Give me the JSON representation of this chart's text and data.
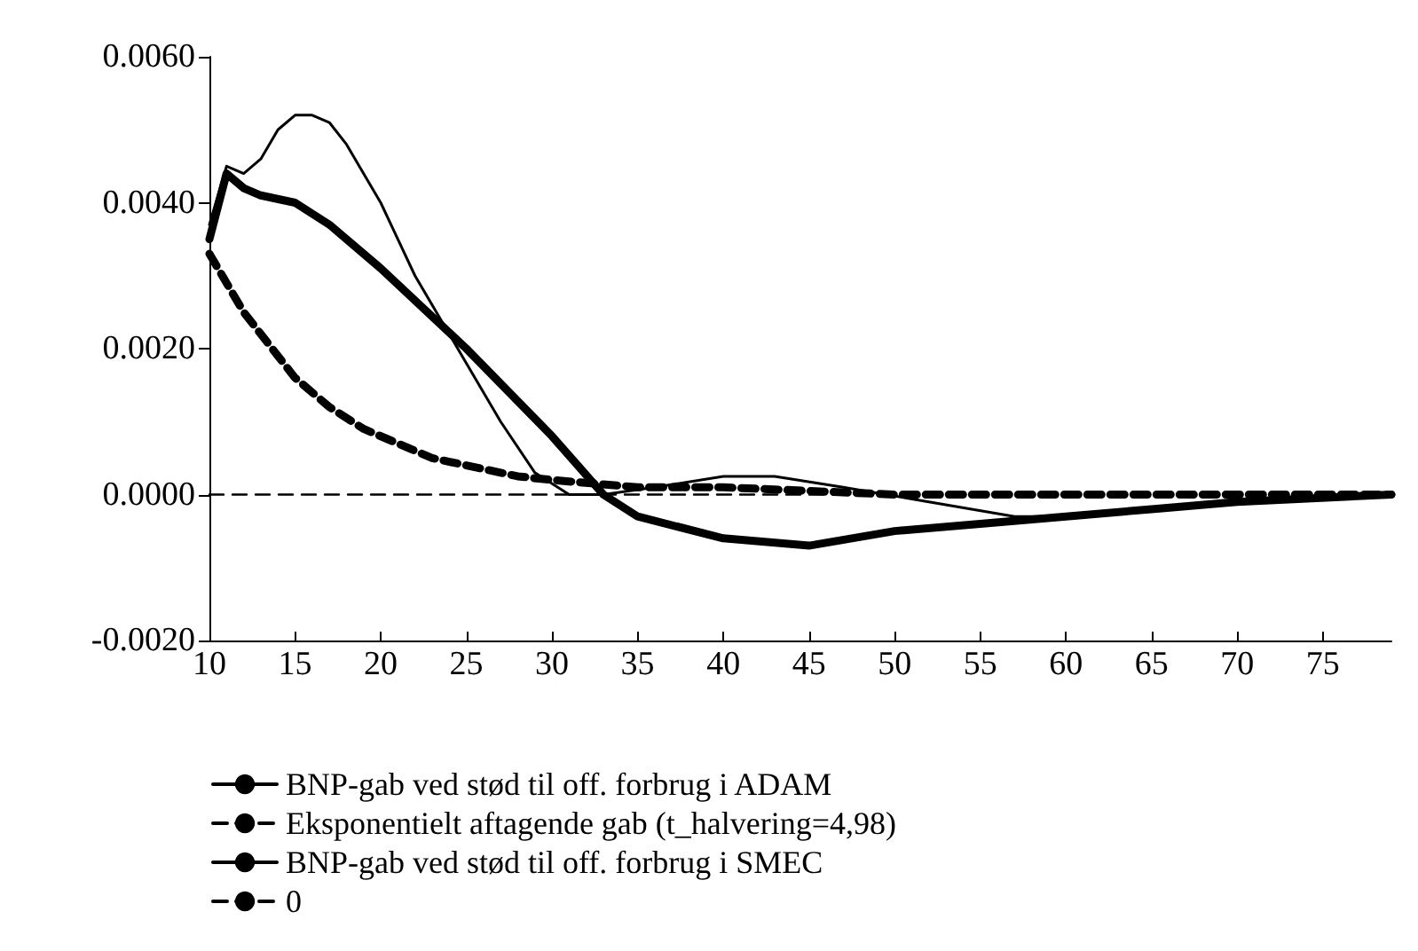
{
  "chart_data": {
    "type": "line",
    "xlim": [
      10,
      79
    ],
    "xticks": [
      10,
      15,
      20,
      25,
      30,
      35,
      40,
      45,
      50,
      55,
      60,
      65,
      70,
      75
    ],
    "ylim": [
      -0.002,
      0.006
    ],
    "yticks": [
      {
        "value": -0.002,
        "label": "-0.0020"
      },
      {
        "value": 0,
        "label": "0.0000"
      },
      {
        "value": 0.002,
        "label": "0.0020"
      },
      {
        "value": 0.004,
        "label": "0.0040"
      },
      {
        "value": 0.006,
        "label": "0.0060"
      }
    ],
    "grid": false,
    "legend": "bottom",
    "marker": "none",
    "series": [
      {
        "name": "BNP-gab ved stød til off. forbrug i ADAM",
        "color": "#000000",
        "line_style": "solid",
        "x": [
          10,
          11,
          12,
          13,
          15,
          17,
          20,
          25,
          30,
          33,
          35,
          40,
          45,
          50,
          55,
          60,
          65,
          70,
          79
        ],
        "values": [
          0.0035,
          0.0044,
          0.0042,
          0.0041,
          0.004,
          0.0037,
          0.0031,
          0.002,
          0.0008,
          0,
          -0.0003,
          -0.0006,
          -0.0007,
          -0.0005,
          -0.0004,
          -0.0003,
          -0.0002,
          -0.0001,
          0
        ]
      },
      {
        "name": "Eksponentielt aftagende gab (t_halvering=4,98)",
        "color": "#000000",
        "line_style": "dashed",
        "x": [
          10,
          11,
          12,
          13,
          14,
          15,
          17,
          19,
          21,
          23,
          25,
          28,
          30,
          35,
          40,
          50,
          79
        ],
        "values": [
          0.0033,
          0.0029,
          0.0025,
          0.0022,
          0.0019,
          0.0016,
          0.0012,
          0.0009,
          0.0007,
          0.0005,
          0.0004,
          0.00025,
          0.0002,
          0.0001,
          0.0001,
          0,
          0
        ]
      },
      {
        "name": "BNP-gab ved stød til off. forbrug i SMEC",
        "color": "#000000",
        "line_style": "solid",
        "x": [
          10,
          11,
          12,
          13,
          14,
          15,
          16,
          17,
          18,
          20,
          22,
          25,
          27,
          29,
          31,
          33,
          36,
          40,
          43,
          47,
          52,
          57,
          60,
          65,
          70,
          79
        ],
        "values": [
          0.0037,
          0.0045,
          0.0044,
          0.0046,
          0.005,
          0.0052,
          0.0052,
          0.0051,
          0.0048,
          0.004,
          0.003,
          0.0018,
          0.001,
          0.0003,
          0,
          0,
          0.0001,
          0.00025,
          0.00025,
          0.0001,
          -0.0001,
          -0.0003,
          -0.0003,
          -0.0002,
          -0.0001,
          0
        ]
      },
      {
        "name": "0",
        "color": "#000000",
        "line_style": "dashed",
        "x": [
          10,
          79
        ],
        "values": [
          0,
          0
        ]
      }
    ]
  }
}
